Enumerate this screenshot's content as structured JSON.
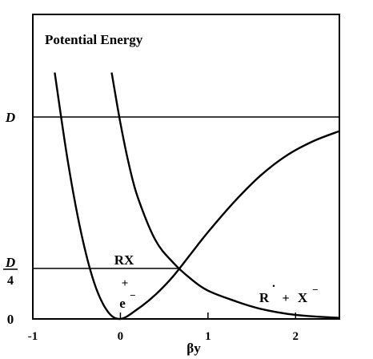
{
  "chart_data": {
    "type": "line",
    "title": "Potential Energy",
    "xlabel": "βy",
    "ylabel": "",
    "xlim": [
      -1,
      2.5
    ],
    "ylim": [
      0,
      1.35
    ],
    "x_ticks": [
      {
        "value": -1,
        "label": "-1"
      },
      {
        "value": 0,
        "label": "0"
      },
      {
        "value": 1,
        "label": "1"
      },
      {
        "value": 2,
        "label": "2"
      }
    ],
    "y_ticks": [
      {
        "value": 0,
        "label": "0"
      },
      {
        "value": 0.25,
        "label_top": "D",
        "label_bottom": "4"
      },
      {
        "value": 1,
        "label": "D"
      }
    ],
    "reference_lines": [
      {
        "y": 1,
        "x_range": [
          -1,
          2.5
        ]
      },
      {
        "y": 0.25,
        "x_range": [
          -1,
          0.68
        ]
      }
    ],
    "series": [
      {
        "name": "RX + e⁻",
        "points": [
          [
            -0.75,
            1.22
          ],
          [
            -0.6,
            0.78
          ],
          [
            -0.45,
            0.43
          ],
          [
            -0.3,
            0.18
          ],
          [
            -0.15,
            0.04
          ],
          [
            0,
            0
          ],
          [
            0.2,
            0.05
          ],
          [
            0.4,
            0.12
          ],
          [
            0.6,
            0.21
          ],
          [
            0.8,
            0.32
          ],
          [
            1.0,
            0.43
          ],
          [
            1.3,
            0.58
          ],
          [
            1.6,
            0.71
          ],
          [
            1.9,
            0.81
          ],
          [
            2.2,
            0.88
          ],
          [
            2.5,
            0.93
          ]
        ]
      },
      {
        "name": "R˙ + X⁻",
        "points": [
          [
            -0.1,
            1.22
          ],
          [
            0,
            0.97
          ],
          [
            0.1,
            0.76
          ],
          [
            0.2,
            0.6
          ],
          [
            0.4,
            0.39
          ],
          [
            0.6,
            0.28
          ],
          [
            0.8,
            0.2
          ],
          [
            1.0,
            0.14
          ],
          [
            1.3,
            0.09
          ],
          [
            1.6,
            0.05
          ],
          [
            2.0,
            0.02
          ],
          [
            2.5,
            0.005
          ]
        ]
      }
    ],
    "annotations": {
      "left_label_top": "RX",
      "left_label_mid": "+",
      "left_label_bottom": "e",
      "left_label_sup": "−",
      "right_label": "R",
      "right_label_dot": "˙",
      "right_label_plus": "+",
      "right_label_x": "X",
      "right_label_sup": "−"
    }
  }
}
